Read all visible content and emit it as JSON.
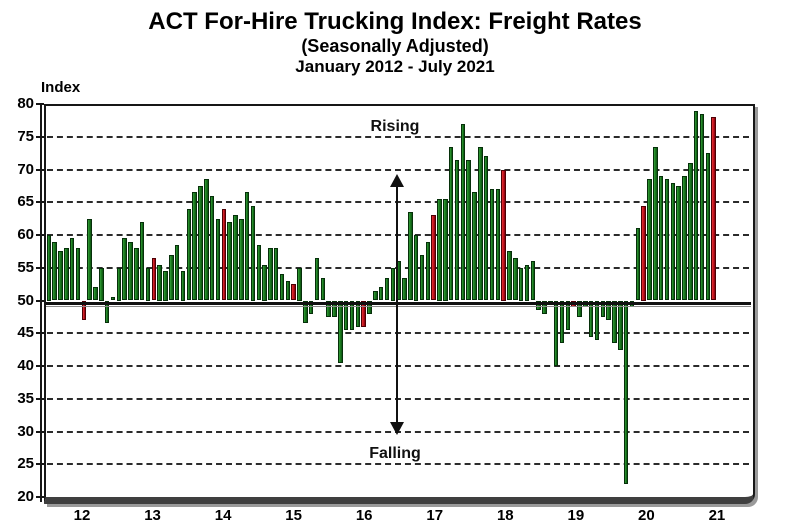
{
  "header": {
    "title": "ACT For-Hire Trucking Index: Freight Rates",
    "subtitle": "(Seasonally Adjusted)",
    "date_range": "January 2012 - July 2021"
  },
  "y_axis": {
    "label": "Index",
    "ticks": [
      80,
      75,
      70,
      65,
      60,
      55,
      50,
      45,
      40,
      35,
      30,
      25,
      20
    ]
  },
  "x_axis": {
    "year_labels": [
      "12",
      "13",
      "14",
      "15",
      "16",
      "17",
      "18",
      "19",
      "20",
      "21"
    ]
  },
  "annotations": {
    "rising": "Rising",
    "falling": "Falling"
  },
  "colors": {
    "bar_green": "#1b7b1f",
    "bar_red": "#c51420",
    "baseline": "#111111",
    "gridline": "#2b2b2b",
    "frame": "#171717",
    "frame_shadow": "#9a9a9a"
  },
  "chart_data": {
    "type": "bar",
    "title": "ACT For-Hire Trucking Index: Freight Rates",
    "subtitle": "(Seasonally Adjusted)",
    "period": "January 2012 - July 2021",
    "ylabel": "Index",
    "ylim": [
      20,
      80
    ],
    "yticks": [
      20,
      25,
      30,
      35,
      40,
      45,
      50,
      55,
      60,
      65,
      70,
      75,
      80
    ],
    "baseline": 50,
    "grid": "horizontal dashed, on",
    "legend": "none",
    "categories_years": [
      "12",
      "13",
      "14",
      "15",
      "16",
      "17",
      "18",
      "19",
      "20",
      "21"
    ],
    "start_month": "2012-01",
    "end_month": "2021-07",
    "highlight_rule": "July bar of each year drawn in red",
    "monthly_values": [
      60,
      59,
      57.5,
      58,
      59.5,
      58,
      47,
      62.5,
      52,
      55,
      46.5,
      50.5,
      55,
      59.5,
      59,
      58,
      62,
      55,
      56.5,
      55.5,
      54.5,
      57,
      58.5,
      54.5,
      64,
      66.5,
      67.5,
      68.5,
      66,
      62.5,
      64,
      62,
      63,
      62.5,
      66.5,
      64.5,
      58.5,
      55.5,
      58,
      58,
      54,
      53,
      52.5,
      55,
      46.5,
      48,
      56.5,
      53.5,
      47.5,
      47.5,
      40.5,
      45.5,
      45.5,
      46,
      46,
      48,
      51.5,
      52,
      53.5,
      55,
      56,
      53.5,
      63.5,
      60,
      57,
      59,
      63,
      65.5,
      65.5,
      73.5,
      71.5,
      77,
      71.5,
      66.5,
      73.5,
      72,
      67,
      67,
      70,
      57.5,
      56.5,
      55,
      55.5,
      56,
      48.5,
      48,
      49.5,
      40,
      43.5,
      45.5,
      49,
      47.5,
      49,
      44.5,
      44,
      47.5,
      47,
      43.5,
      42.5,
      22,
      49,
      61,
      64.5,
      68.5,
      73.5,
      69,
      68.5,
      68,
      67.5,
      69,
      71,
      79,
      78.5,
      72.5,
      78
    ],
    "red_indices": [
      6,
      18,
      30,
      42,
      54,
      66,
      78,
      90,
      102,
      114
    ]
  }
}
